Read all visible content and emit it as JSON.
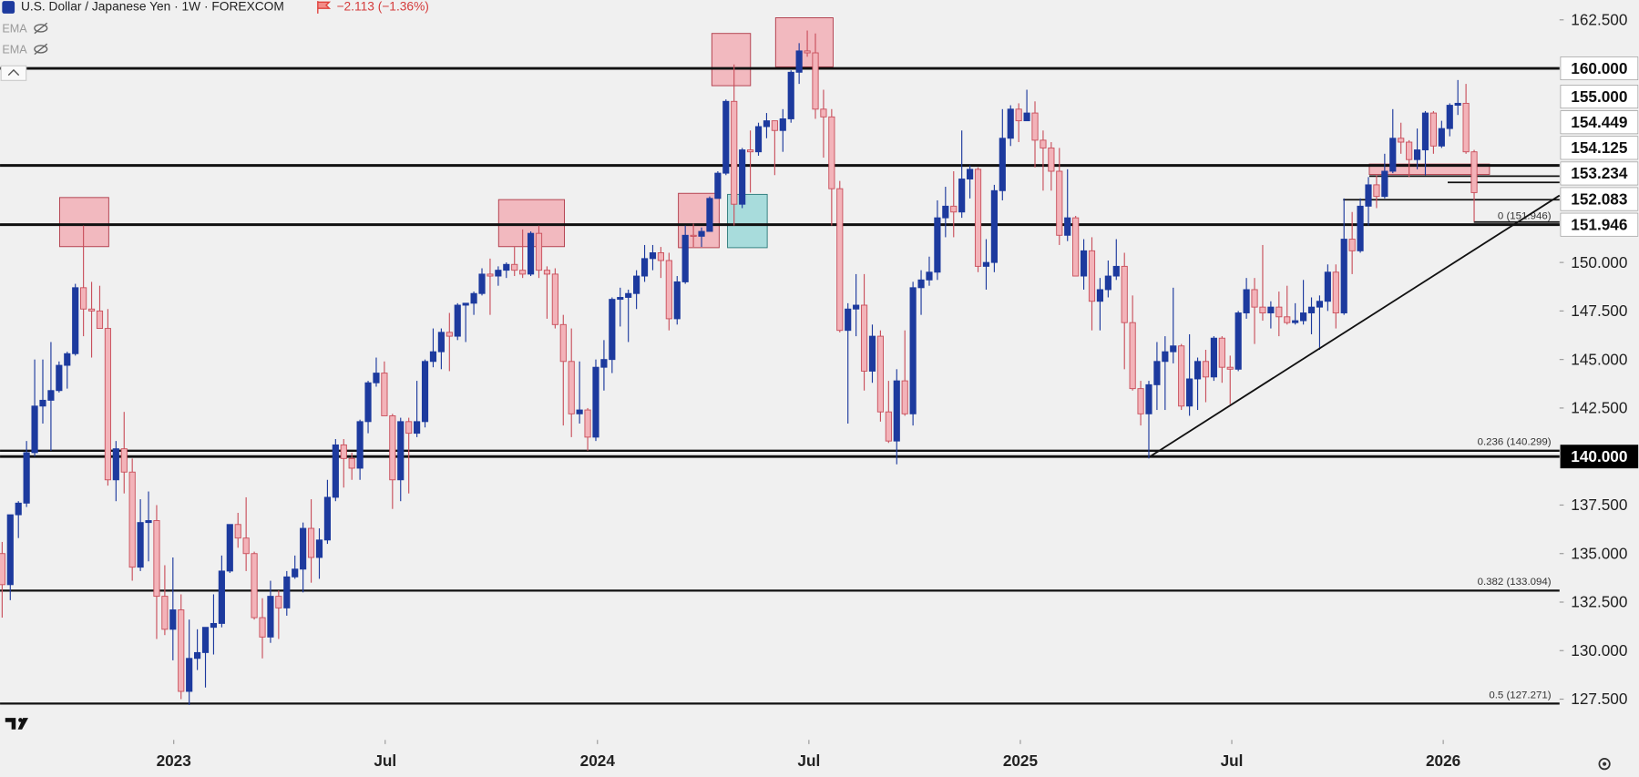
{
  "chart_data": {
    "type": "candlestick",
    "title": "U.S. Dollar / Japanese Yen · 1W · FOREXCOM",
    "change": "−2.113 (−1.36%)",
    "indicators": [
      "EMA",
      "EMA"
    ],
    "up_color": "#1d3a9e",
    "down_color": "#f3b3b9",
    "down_edge_color": "#c9505c",
    "open": [
      135.0,
      133.4,
      137.0,
      137.6,
      140.2,
      142.6,
      142.9,
      143.4,
      144.7,
      145.3,
      148.7,
      147.6,
      147.5,
      146.6,
      138.8,
      140.4,
      139.2,
      134.3,
      136.6,
      136.7,
      132.8,
      131.1,
      132.1,
      127.9,
      129.6,
      129.9,
      131.2,
      131.4,
      134.1,
      136.5,
      135.8,
      135.0,
      131.7,
      130.7,
      132.8,
      132.2,
      133.8,
      134.2,
      136.3,
      134.8,
      135.7,
      137.9,
      140.6,
      139.9,
      139.4,
      141.8,
      143.8,
      144.3,
      142.1,
      138.8,
      141.8,
      141.2,
      141.8,
      144.9,
      145.4,
      146.4,
      146.2,
      147.8,
      147.9,
      148.4,
      149.4,
      149.3,
      149.6,
      149.9,
      149.6,
      149.4,
      151.5,
      149.6,
      149.4,
      146.8,
      144.9,
      142.2,
      142.4,
      141.0,
      144.6,
      145.0,
      148.1,
      148.2,
      148.4,
      149.3,
      150.2,
      150.5,
      150.1,
      147.1,
      149.0,
      151.4,
      151.35,
      151.6,
      153.3,
      154.6,
      158.3,
      153.0,
      155.8,
      155.7,
      157.0,
      157.3,
      156.8,
      157.4,
      159.8,
      160.9,
      160.8,
      157.9,
      157.5,
      153.8,
      146.5,
      147.6,
      147.8,
      144.4,
      146.2,
      142.3,
      140.8,
      143.9,
      142.2,
      148.7,
      149.1,
      149.5,
      152.3,
      152.9,
      152.6,
      154.3,
      154.8,
      149.8,
      150.0,
      153.7,
      156.4,
      157.9,
      157.3,
      157.7,
      156.3,
      155.9,
      154.7,
      151.4,
      152.3,
      149.3,
      150.6,
      148.0,
      148.6,
      149.3,
      149.8,
      146.9,
      143.5,
      142.2,
      143.7,
      144.9,
      145.4,
      145.7,
      142.6,
      144.0,
      144.9,
      144.1,
      146.1,
      144.6,
      144.5,
      147.4,
      148.6,
      147.7,
      147.4,
      147.7,
      147.2,
      146.9,
      147.0,
      147.4,
      147.7,
      148.0,
      149.5,
      147.4,
      151.2,
      150.6,
      152.9,
      154.0,
      153.4,
      154.7,
      156.4,
      156.2,
      155.3,
      155.8,
      157.7,
      156.0,
      156.9,
      158.1,
      158.2,
      155.7
    ],
    "high": [
      135.6,
      137.0,
      137.7,
      140.8,
      145.0,
      145.0,
      145.9,
      144.9,
      145.4,
      148.9,
      151.9,
      149.0,
      148.8,
      147.6,
      140.8,
      142.3,
      139.9,
      137.8,
      138.2,
      137.5,
      134.4,
      134.8,
      132.9,
      131.6,
      131.1,
      131.2,
      132.9,
      134.9,
      136.5,
      137.1,
      137.9,
      135.1,
      132.7,
      133.6,
      133.1,
      134.1,
      134.9,
      136.6,
      137.8,
      136.3,
      138.8,
      140.9,
      140.9,
      140.2,
      141.9,
      143.9,
      145.1,
      144.9,
      142.2,
      142.0,
      142.0,
      143.9,
      145.0,
      146.6,
      146.6,
      147.4,
      147.9,
      147.9,
      148.5,
      149.7,
      150.2,
      149.8,
      150.0,
      150.8,
      151.7,
      151.6,
      151.9,
      149.8,
      149.7,
      147.3,
      146.6,
      144.9,
      142.5,
      145.0,
      146.0,
      148.2,
      148.7,
      148.6,
      149.6,
      150.9,
      150.9,
      150.8,
      150.5,
      149.3,
      151.9,
      152.0,
      151.8,
      153.4,
      154.7,
      158.4,
      160.2,
      155.9,
      156.8,
      157.2,
      157.7,
      157.3,
      157.9,
      159.9,
      161.3,
      161.95,
      161.8,
      158.9,
      157.9,
      154.2,
      147.9,
      149.4,
      149.4,
      146.8,
      146.5,
      143.9,
      144.5,
      146.5,
      149.0,
      149.6,
      150.3,
      153.2,
      153.9,
      154.7,
      156.8,
      155.0,
      154.9,
      151.2,
      154.0,
      157.9,
      158.1,
      158.2,
      158.9,
      158.3,
      156.8,
      156.2,
      155.9,
      154.8,
      152.4,
      151.2,
      151.3,
      149.2,
      150.1,
      151.2,
      150.5,
      148.3,
      143.9,
      143.9,
      145.9,
      146.2,
      148.7,
      145.8,
      146.3,
      145.1,
      145.5,
      146.2,
      146.2,
      145.2,
      147.5,
      149.2,
      149.2,
      150.9,
      148.0,
      148.5,
      148.8,
      147.9,
      149.1,
      148.2,
      148.3,
      149.9,
      149.9,
      153.3,
      152.6,
      153.3,
      154.4,
      154.5,
      155.6,
      157.9,
      157.2,
      156.3,
      156.9,
      157.8,
      157.8,
      157.3,
      158.2,
      159.4,
      159.2,
      155.8
    ],
    "low": [
      131.7,
      132.6,
      135.8,
      137.4,
      140.0,
      141.7,
      140.3,
      143.3,
      143.5,
      145.2,
      146.2,
      145.1,
      146.6,
      138.5,
      137.7,
      138.1,
      133.6,
      134.1,
      134.6,
      130.6,
      130.8,
      129.5,
      127.5,
      127.2,
      129.0,
      128.1,
      129.8,
      131.2,
      134.0,
      135.3,
      134.1,
      131.6,
      129.6,
      130.4,
      130.6,
      131.8,
      133.7,
      133.0,
      133.5,
      133.7,
      135.5,
      137.7,
      138.4,
      138.8,
      138.8,
      141.2,
      143.6,
      142.1,
      137.3,
      137.7,
      138.1,
      141.0,
      141.5,
      144.6,
      144.5,
      144.4,
      146.0,
      145.9,
      147.3,
      148.3,
      147.3,
      148.8,
      149.2,
      149.3,
      149.2,
      149.3,
      149.2,
      147.1,
      146.6,
      141.6,
      141.0,
      141.7,
      140.3,
      140.8,
      143.4,
      144.3,
      146.7,
      145.9,
      147.6,
      149.0,
      149.6,
      149.2,
      146.5,
      146.8,
      148.9,
      150.8,
      150.8,
      151.6,
      153.3,
      154.5,
      151.9,
      152.8,
      153.6,
      155.5,
      156.4,
      154.5,
      155.7,
      157.2,
      159.2,
      160.6,
      157.4,
      155.4,
      151.9,
      146.4,
      141.7,
      146.2,
      143.4,
      143.8,
      141.8,
      140.7,
      139.6,
      142.1,
      141.6,
      147.3,
      148.8,
      149.1,
      151.3,
      151.3,
      152.3,
      153.3,
      149.5,
      148.6,
      149.5,
      153.2,
      156.0,
      156.2,
      157.3,
      154.9,
      153.7,
      153.7,
      150.9,
      151.1,
      149.3,
      148.6,
      146.5,
      146.5,
      148.2,
      149.1,
      144.5,
      143.4,
      141.6,
      139.9,
      142.4,
      142.4,
      144.8,
      142.4,
      142.1,
      142.4,
      142.8,
      143.9,
      143.8,
      142.7,
      144.4,
      147.1,
      145.8,
      147.0,
      146.6,
      146.2,
      146.8,
      146.8,
      146.8,
      146.3,
      145.5,
      147.5,
      146.6,
      147.3,
      149.4,
      150.5,
      151.9,
      152.8,
      153.3,
      154.6,
      155.6,
      154.4,
      154.8,
      154.5,
      155.6,
      155.9,
      156.5,
      157.6,
      155.6,
      152.1
    ],
    "close": [
      133.4,
      137.0,
      137.6,
      140.2,
      142.6,
      142.9,
      143.4,
      144.7,
      145.3,
      148.7,
      147.6,
      147.5,
      146.6,
      138.8,
      140.4,
      139.2,
      134.3,
      136.6,
      136.7,
      132.8,
      131.1,
      132.1,
      127.9,
      129.6,
      129.9,
      131.2,
      131.4,
      134.1,
      136.5,
      135.8,
      135.0,
      131.7,
      130.7,
      132.8,
      132.2,
      133.8,
      134.2,
      136.3,
      134.8,
      135.7,
      137.9,
      140.6,
      139.9,
      139.4,
      141.8,
      143.8,
      144.3,
      142.1,
      138.8,
      141.8,
      141.2,
      141.8,
      144.9,
      145.4,
      146.4,
      146.2,
      147.8,
      147.9,
      148.4,
      149.4,
      149.3,
      149.6,
      149.9,
      149.6,
      149.4,
      151.5,
      149.6,
      149.4,
      146.8,
      144.9,
      142.2,
      142.4,
      141.0,
      144.6,
      145.0,
      148.1,
      148.2,
      148.4,
      149.3,
      150.2,
      150.5,
      150.1,
      147.1,
      149.0,
      151.4,
      151.35,
      151.6,
      153.3,
      154.6,
      158.3,
      153.0,
      155.8,
      155.7,
      157.0,
      157.3,
      156.8,
      157.4,
      159.8,
      160.9,
      160.8,
      157.9,
      157.5,
      153.8,
      146.5,
      147.6,
      147.8,
      144.4,
      146.2,
      142.3,
      140.8,
      143.9,
      142.2,
      148.7,
      149.1,
      149.5,
      152.3,
      152.9,
      152.6,
      154.3,
      154.8,
      149.8,
      150.0,
      153.7,
      156.4,
      157.9,
      157.3,
      157.7,
      156.3,
      155.9,
      154.7,
      151.4,
      152.3,
      149.3,
      150.6,
      148.0,
      148.6,
      149.3,
      149.8,
      146.9,
      143.5,
      142.2,
      143.7,
      144.9,
      145.4,
      145.7,
      142.6,
      144.0,
      144.9,
      144.1,
      146.1,
      144.6,
      144.5,
      147.4,
      148.6,
      147.7,
      147.4,
      147.7,
      147.2,
      146.9,
      147.0,
      147.4,
      147.7,
      148.0,
      149.5,
      147.4,
      151.2,
      150.6,
      152.9,
      154.0,
      153.4,
      154.7,
      156.4,
      156.2,
      155.3,
      155.8,
      157.7,
      156.0,
      156.9,
      158.1,
      158.2,
      155.7,
      153.6
    ],
    "xlim": [
      -0.26,
      191.5
    ],
    "xticks": [
      {
        "value": 21.1,
        "label": "2023"
      },
      {
        "value": 47.1,
        "label": "Jul"
      },
      {
        "value": 73.2,
        "label": "2024"
      },
      {
        "value": 99.2,
        "label": "Jul"
      },
      {
        "value": 125.2,
        "label": "2025"
      },
      {
        "value": 151.2,
        "label": "Jul"
      },
      {
        "value": 177.2,
        "label": "2026"
      }
    ],
    "ylim": [
      127.5,
      162.5
    ],
    "yticks": [
      {
        "value": 162.5,
        "label": "162.500"
      },
      {
        "value": 150,
        "label": "150.000"
      },
      {
        "value": 147.5,
        "label": "147.500"
      },
      {
        "value": 145,
        "label": "145.000"
      },
      {
        "value": 142.5,
        "label": "142.500"
      },
      {
        "value": 137.5,
        "label": "137.500"
      },
      {
        "value": 135,
        "label": "135.000"
      },
      {
        "value": 132.5,
        "label": "132.500"
      },
      {
        "value": 130,
        "label": "130.000"
      },
      {
        "value": 127.5,
        "label": "127.500"
      }
    ],
    "price_lines": [
      {
        "value": 160,
        "label": "160.000",
        "label_bg": "#ffffff"
      },
      {
        "value": 155,
        "label": "155.000",
        "label_bg": "#ffffff"
      },
      {
        "value": 154.449,
        "label": "154.449",
        "label_bg": "#ffffff"
      },
      {
        "value": 154.125,
        "label": "154.125",
        "label_bg": "#ffffff"
      },
      {
        "value": 153.234,
        "label": "153.234",
        "label_bg": "#ffffff"
      },
      {
        "value": 152.083,
        "label": "152.083",
        "label_bg": "#ffffff"
      },
      {
        "value": 151.946,
        "label": "151.946",
        "label_bg": "#ffffff"
      },
      {
        "value": 140,
        "label": "140.000",
        "label_bg": "#000000"
      }
    ],
    "fib_levels": [
      {
        "value": 151.946,
        "label": "0 (151.946)"
      },
      {
        "value": 140.299,
        "label": "0.236 (140.299)"
      },
      {
        "value": 133.094,
        "label": "0.382 (133.094)"
      },
      {
        "value": 127.271,
        "label": "0.5 (127.271)"
      }
    ]
  }
}
